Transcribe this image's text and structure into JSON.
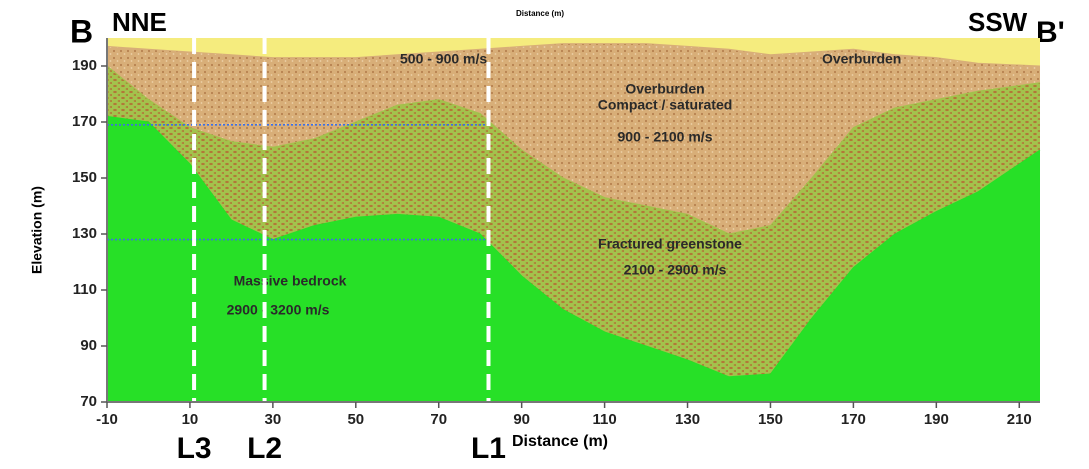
{
  "chart_data": {
    "type": "area",
    "top_label": "Distance (m)",
    "x_label": "Distance (m)",
    "y_label": "Elevation (m)",
    "corner_labels": [
      "B",
      "NNE",
      "SSW",
      "B'"
    ],
    "xlim": [
      -10,
      215
    ],
    "ylim": [
      70,
      200
    ],
    "xticks": [
      -10,
      10,
      30,
      50,
      70,
      90,
      110,
      130,
      150,
      170,
      190,
      210
    ],
    "yticks": [
      70,
      90,
      110,
      130,
      150,
      170,
      190
    ],
    "background_color": "#f5ec7e",
    "x": [
      -10,
      0,
      10,
      20,
      30,
      40,
      50,
      60,
      70,
      80,
      90,
      100,
      110,
      120,
      130,
      140,
      150,
      160,
      170,
      180,
      190,
      200,
      215
    ],
    "series": [
      {
        "color": "#d8ae78",
        "values": [
          197,
          196,
          195,
          194,
          193,
          193,
          193,
          194,
          195,
          196,
          197,
          198,
          198,
          198,
          197,
          196,
          194,
          195,
          196,
          194,
          193,
          191,
          190
        ]
      },
      {
        "color": "#a3c24c",
        "values": [
          190,
          178,
          168,
          163,
          161,
          164,
          170,
          176,
          178,
          173,
          160,
          150,
          143,
          140,
          137,
          130,
          133,
          150,
          168,
          175,
          178,
          181,
          184
        ]
      },
      {
        "color": "#27e027",
        "values": [
          172,
          170,
          155,
          135,
          128,
          133,
          136,
          137,
          136,
          130,
          115,
          103,
          95,
          90,
          85,
          79,
          80,
          100,
          118,
          130,
          138,
          145,
          160
        ]
      }
    ],
    "hlines": [
      169,
      128
    ],
    "lines": [
      {
        "label": "L3",
        "x": 11
      },
      {
        "label": "L2",
        "x": 28
      },
      {
        "label": "L1",
        "x": 82
      }
    ],
    "annotations": [
      "500 - 900 m/s",
      "Overburden",
      "Overburden",
      "Compact / saturated",
      "900 - 2100 m/s",
      "Fractured greenstone",
      "2100 - 2900 m/s",
      "Massive bedrock",
      "2900 - 3200 m/s"
    ]
  }
}
